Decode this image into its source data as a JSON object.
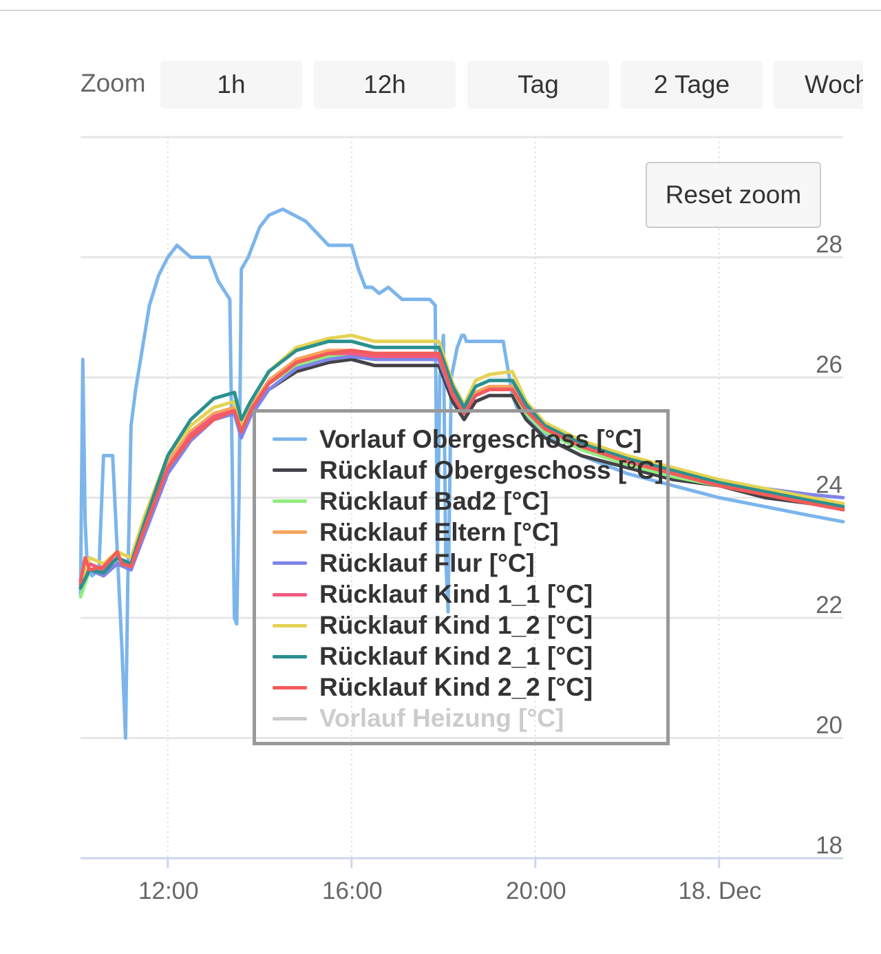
{
  "zoom": {
    "label": "Zoom",
    "buttons": [
      "1h",
      "12h",
      "Tag",
      "2 Tage",
      "Woche"
    ]
  },
  "reset_zoom_label": "Reset zoom",
  "chart_data": {
    "type": "line",
    "title": "",
    "xlabel": "",
    "ylabel": "",
    "x_ticks": [
      "12:00",
      "16:00",
      "20:00",
      "18. Dec"
    ],
    "y_ticks": [
      18,
      20,
      22,
      24,
      26,
      28
    ],
    "ylim": [
      18,
      30
    ],
    "x_range_hours": [
      10.1,
      26.7
    ],
    "x_unit": "hours since 17. Dec 00:00",
    "grid": true,
    "y_axis_position": "right",
    "legend_position": "center",
    "series": [
      {
        "name": "Vorlauf Obergeschoss [°C]",
        "color": "#7cb5ec",
        "visible": true,
        "x": [
          10.1,
          10.15,
          10.2,
          10.25,
          10.35,
          10.5,
          10.6,
          10.7,
          10.8,
          11.0,
          11.08,
          11.13,
          11.2,
          11.3,
          11.45,
          11.6,
          11.8,
          12.0,
          12.2,
          12.5,
          12.65,
          12.9,
          13.1,
          13.35,
          13.45,
          13.5,
          13.55,
          13.6,
          13.75,
          14.0,
          14.2,
          14.5,
          14.75,
          15.0,
          15.5,
          16.0,
          16.15,
          16.3,
          16.45,
          16.6,
          16.8,
          17.1,
          17.4,
          17.7,
          17.82,
          17.87,
          17.92,
          18.0,
          18.05,
          18.1,
          18.17,
          18.3,
          18.4,
          18.45,
          18.5,
          18.6,
          18.9,
          19.3,
          19.5,
          19.6,
          20.0,
          20.5,
          21.0,
          22.0,
          23.0,
          24.0,
          25.0,
          26.0,
          26.7
        ],
        "y": [
          22.4,
          26.3,
          23.6,
          22.8,
          22.7,
          22.8,
          24.7,
          24.7,
          24.7,
          21.5,
          20.0,
          22.6,
          25.2,
          25.8,
          26.5,
          27.2,
          27.7,
          28.0,
          28.2,
          28.0,
          28.0,
          28.0,
          27.6,
          27.3,
          22.0,
          21.9,
          24.0,
          27.8,
          28.0,
          28.5,
          28.7,
          28.8,
          28.7,
          28.6,
          28.2,
          28.2,
          27.8,
          27.5,
          27.5,
          27.4,
          27.5,
          27.3,
          27.3,
          27.3,
          27.2,
          23.0,
          26.0,
          26.7,
          23.0,
          22.1,
          26.0,
          26.5,
          26.7,
          26.7,
          26.6,
          26.6,
          26.6,
          26.6,
          25.7,
          25.5,
          25.2,
          24.9,
          24.7,
          24.4,
          24.2,
          24.0,
          23.85,
          23.7,
          23.6
        ]
      },
      {
        "name": "Rücklauf Obergeschoss [°C]",
        "color": "#434348",
        "visible": true,
        "x": [
          10.1,
          10.3,
          10.6,
          10.9,
          11.2,
          11.5,
          12.0,
          12.5,
          13.0,
          13.45,
          13.6,
          13.8,
          14.2,
          14.8,
          15.5,
          16.0,
          16.5,
          17.0,
          17.5,
          17.9,
          18.2,
          18.45,
          18.7,
          19.0,
          19.5,
          19.8,
          20.2,
          21.0,
          22.0,
          23.0,
          24.0,
          25.0,
          26.0,
          26.7
        ],
        "y": [
          22.5,
          22.8,
          22.7,
          22.9,
          22.8,
          23.5,
          24.5,
          25.0,
          25.3,
          25.4,
          25.0,
          25.4,
          25.8,
          26.1,
          26.25,
          26.3,
          26.2,
          26.2,
          26.2,
          26.2,
          25.6,
          25.3,
          25.6,
          25.7,
          25.7,
          25.3,
          25.0,
          24.7,
          24.5,
          24.3,
          24.2,
          24.0,
          23.9,
          23.8
        ]
      },
      {
        "name": "Rücklauf Bad2 [°C]",
        "color": "#90ed7d",
        "visible": true,
        "x": [
          10.1,
          10.3,
          10.6,
          10.9,
          11.2,
          11.5,
          12.0,
          12.5,
          13.0,
          13.45,
          13.6,
          13.8,
          14.2,
          14.8,
          15.5,
          16.0,
          16.5,
          17.0,
          17.5,
          17.9,
          18.2,
          18.45,
          18.7,
          19.0,
          19.5,
          19.8,
          20.2,
          21.0,
          22.0,
          23.0,
          24.0,
          25.0,
          26.0,
          26.7
        ],
        "y": [
          22.35,
          22.8,
          22.8,
          23.0,
          22.9,
          23.5,
          24.6,
          25.1,
          25.4,
          25.5,
          25.1,
          25.5,
          25.9,
          26.2,
          26.35,
          26.35,
          26.3,
          26.3,
          26.3,
          26.3,
          25.7,
          25.4,
          25.7,
          25.8,
          25.8,
          25.4,
          25.1,
          24.8,
          24.55,
          24.35,
          24.2,
          24.05,
          23.95,
          23.85
        ]
      },
      {
        "name": "Rücklauf Eltern [°C]",
        "color": "#f7a35c",
        "visible": true,
        "x": [
          10.1,
          10.3,
          10.6,
          10.9,
          11.2,
          11.5,
          12.0,
          12.5,
          13.0,
          13.45,
          13.6,
          13.8,
          14.2,
          14.8,
          15.5,
          16.0,
          16.5,
          17.0,
          17.5,
          17.9,
          18.2,
          18.45,
          18.7,
          19.0,
          19.5,
          19.8,
          20.2,
          21.0,
          22.0,
          23.0,
          24.0,
          25.0,
          26.0,
          26.7
        ],
        "y": [
          22.5,
          22.9,
          22.8,
          23.0,
          22.9,
          23.6,
          24.6,
          25.1,
          25.4,
          25.5,
          25.1,
          25.5,
          25.95,
          26.3,
          26.45,
          26.45,
          26.4,
          26.4,
          26.4,
          26.4,
          25.8,
          25.45,
          25.75,
          25.85,
          25.85,
          25.5,
          25.15,
          24.85,
          24.6,
          24.4,
          24.25,
          24.1,
          24.0,
          23.9
        ]
      },
      {
        "name": "Rücklauf Flur [°C]",
        "color": "#8085e9",
        "visible": true,
        "x": [
          10.1,
          10.3,
          10.6,
          10.9,
          11.2,
          11.5,
          12.0,
          12.5,
          13.0,
          13.45,
          13.6,
          13.8,
          14.2,
          14.8,
          15.5,
          16.0,
          16.5,
          17.0,
          17.5,
          17.9,
          18.2,
          18.45,
          18.7,
          19.0,
          19.5,
          19.8,
          20.2,
          21.0,
          22.0,
          23.0,
          24.0,
          25.0,
          26.0,
          26.7
        ],
        "y": [
          22.5,
          22.8,
          22.7,
          22.9,
          22.8,
          23.4,
          24.4,
          24.95,
          25.3,
          25.4,
          25.0,
          25.35,
          25.8,
          26.15,
          26.3,
          26.35,
          26.3,
          26.3,
          26.3,
          26.3,
          25.7,
          25.4,
          25.7,
          25.8,
          25.8,
          25.45,
          25.2,
          24.9,
          24.65,
          24.45,
          24.3,
          24.15,
          24.05,
          24.0
        ]
      },
      {
        "name": "Rücklauf Kind 1_1 [°C]",
        "color": "#f15c80",
        "visible": true,
        "x": [
          10.1,
          10.3,
          10.6,
          10.9,
          11.2,
          11.5,
          12.0,
          12.5,
          13.0,
          13.45,
          13.6,
          13.8,
          14.2,
          14.8,
          15.5,
          16.0,
          16.5,
          17.0,
          17.5,
          17.9,
          18.2,
          18.45,
          18.7,
          19.0,
          19.5,
          19.8,
          20.2,
          21.0,
          22.0,
          23.0,
          24.0,
          25.0,
          26.0,
          26.7
        ],
        "y": [
          22.55,
          22.9,
          22.8,
          23.0,
          22.9,
          23.5,
          24.5,
          25.05,
          25.35,
          25.45,
          25.1,
          25.45,
          25.9,
          26.25,
          26.4,
          26.4,
          26.35,
          26.35,
          26.35,
          26.35,
          25.75,
          25.4,
          25.7,
          25.8,
          25.8,
          25.45,
          25.15,
          24.85,
          24.6,
          24.4,
          24.2,
          24.05,
          23.9,
          23.8
        ]
      },
      {
        "name": "Rücklauf Kind 1_2 [°C]",
        "color": "#e4d354",
        "visible": true,
        "x": [
          10.1,
          10.3,
          10.6,
          10.9,
          11.2,
          11.5,
          12.0,
          12.5,
          13.0,
          13.45,
          13.6,
          13.8,
          14.2,
          14.8,
          15.5,
          16.0,
          16.5,
          17.0,
          17.5,
          17.9,
          18.2,
          18.45,
          18.7,
          19.0,
          19.5,
          19.8,
          20.2,
          21.0,
          22.0,
          23.0,
          24.0,
          25.0,
          26.0,
          26.7
        ],
        "y": [
          22.6,
          23.0,
          22.9,
          23.1,
          23.0,
          23.7,
          24.7,
          25.2,
          25.5,
          25.6,
          25.2,
          25.6,
          26.1,
          26.5,
          26.65,
          26.7,
          26.6,
          26.6,
          26.6,
          26.6,
          25.9,
          25.55,
          25.95,
          26.05,
          26.1,
          25.6,
          25.25,
          24.95,
          24.7,
          24.5,
          24.3,
          24.15,
          24.0,
          23.9
        ]
      },
      {
        "name": "Rücklauf Kind 2_1 [°C]",
        "color": "#2b908f",
        "visible": true,
        "x": [
          10.1,
          10.3,
          10.6,
          10.9,
          11.2,
          11.5,
          12.0,
          12.5,
          13.0,
          13.45,
          13.6,
          13.8,
          14.2,
          14.8,
          15.5,
          16.0,
          16.5,
          17.0,
          17.5,
          17.9,
          18.2,
          18.45,
          18.7,
          19.0,
          19.5,
          19.8,
          20.2,
          21.0,
          22.0,
          23.0,
          24.0,
          25.0,
          26.0,
          26.7
        ],
        "y": [
          22.5,
          22.8,
          22.75,
          23.0,
          22.9,
          23.6,
          24.7,
          25.3,
          25.65,
          25.75,
          25.3,
          25.6,
          26.1,
          26.45,
          26.6,
          26.6,
          26.5,
          26.5,
          26.5,
          26.5,
          25.85,
          25.5,
          25.85,
          25.95,
          25.95,
          25.55,
          25.2,
          24.9,
          24.65,
          24.45,
          24.25,
          24.1,
          23.95,
          23.85
        ]
      },
      {
        "name": "Rücklauf Kind 2_2 [°C]",
        "color": "#f45b5b",
        "visible": true,
        "x": [
          10.1,
          10.2,
          10.3,
          10.6,
          10.9,
          11.0,
          11.2,
          11.5,
          12.0,
          12.5,
          13.0,
          13.45,
          13.6,
          13.8,
          14.2,
          14.8,
          15.5,
          16.0,
          16.5,
          17.0,
          17.5,
          17.9,
          18.2,
          18.45,
          18.7,
          19.0,
          19.5,
          19.8,
          20.2,
          21.0,
          22.0,
          23.0,
          24.0,
          25.0,
          26.0,
          26.7
        ],
        "y": [
          22.6,
          23.0,
          22.8,
          22.85,
          23.1,
          22.9,
          22.85,
          23.5,
          24.5,
          25.0,
          25.3,
          25.45,
          25.1,
          25.45,
          25.9,
          26.25,
          26.4,
          26.45,
          26.4,
          26.4,
          26.4,
          26.4,
          25.7,
          25.4,
          25.7,
          25.8,
          25.8,
          25.45,
          25.15,
          24.85,
          24.6,
          24.4,
          24.2,
          24.05,
          23.9,
          23.8
        ]
      },
      {
        "name": "Vorlauf Heizung [°C]",
        "color": "#cccccc",
        "visible": false
      }
    ]
  }
}
